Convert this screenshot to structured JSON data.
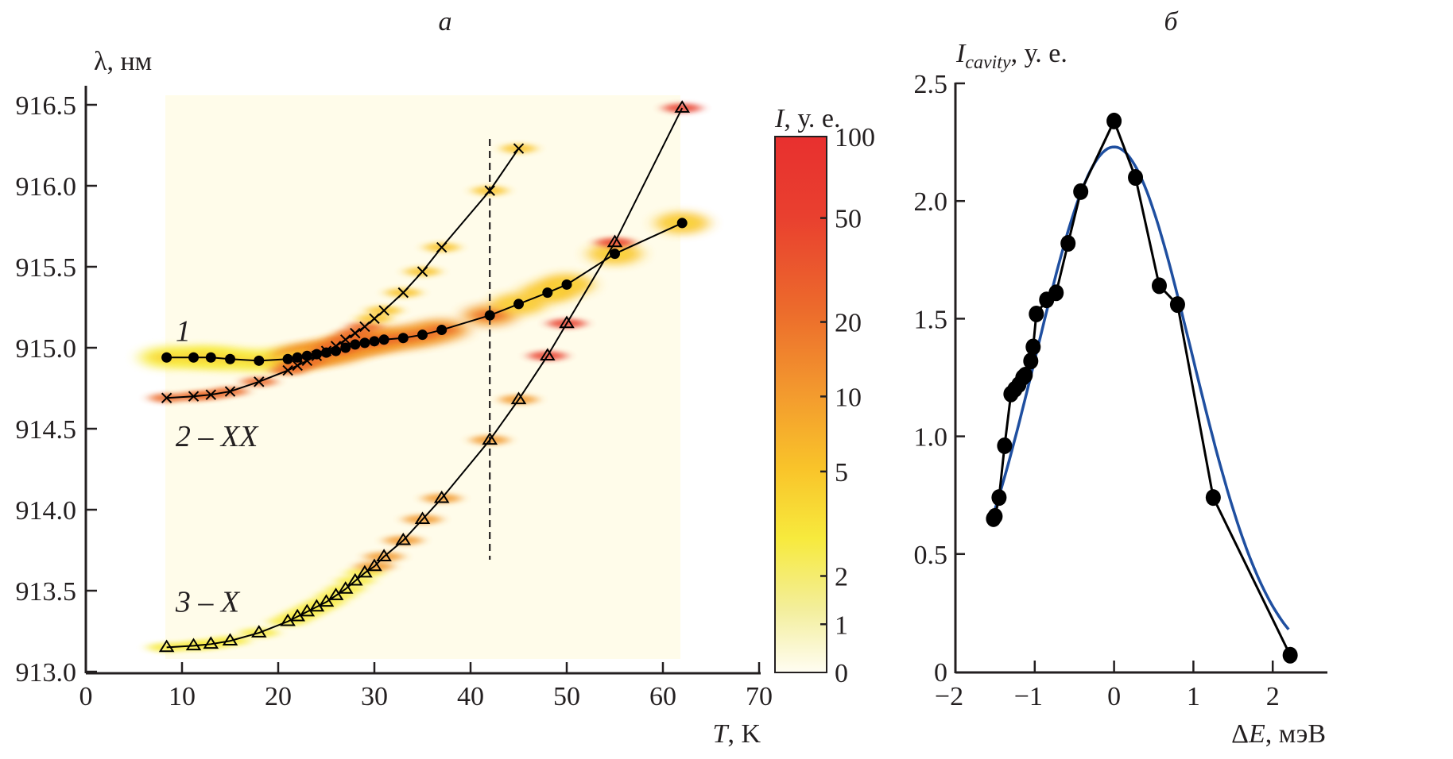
{
  "chart_data": [
    {
      "panel": "а",
      "type": "heatmap",
      "title": "а",
      "xlabel": "T, K",
      "xlabel_main": "T",
      "xlabel_unit": ", K",
      "ylabel": "λ, нм",
      "xlim": [
        0,
        70
      ],
      "ylim": [
        913.0,
        916.5
      ],
      "xticks": [
        0,
        10,
        20,
        30,
        40,
        50,
        60,
        70
      ],
      "yticks": [
        "913.0",
        "913.5",
        "914.0",
        "914.5",
        "915.0",
        "915.5",
        "916.0",
        "916.5"
      ],
      "grid": false,
      "colorbar": {
        "label": "I, у. е.",
        "label_main": "I",
        "label_unit": ", у. е.",
        "ticks": [
          "100",
          "50",
          "20",
          "10",
          "5",
          "2",
          "1",
          "0"
        ],
        "scale": "log",
        "colors": [
          "#fffdf2",
          "#f3ee9a",
          "#f7ea3d",
          "#f9c42a",
          "#f39a2e",
          "#ec6a2c",
          "#e9402f",
          "#e8302f"
        ]
      },
      "vertical_marker": {
        "x": 42,
        "style": "dashed"
      },
      "series": [
        {
          "name": "1",
          "marker": "filled-circle",
          "x": [
            8.4,
            11.2,
            13,
            15,
            18,
            21,
            22,
            23,
            24,
            25,
            26,
            27,
            28,
            29,
            30,
            31,
            33,
            35,
            37,
            42,
            45,
            48,
            50,
            55,
            62
          ],
          "y": [
            914.94,
            914.94,
            914.94,
            914.93,
            914.92,
            914.93,
            914.94,
            914.95,
            914.96,
            914.97,
            914.98,
            915.0,
            915.02,
            915.03,
            915.04,
            915.05,
            915.06,
            915.08,
            915.11,
            915.2,
            915.27,
            915.34,
            915.39,
            915.58,
            915.77
          ]
        },
        {
          "name": "2 – XX",
          "marker": "cross",
          "x": [
            8.4,
            11.2,
            13,
            15,
            18,
            21,
            22,
            23,
            24,
            25,
            26,
            27,
            28,
            29,
            30,
            31,
            33,
            35,
            37,
            42,
            45
          ],
          "y": [
            914.69,
            914.7,
            914.71,
            914.73,
            914.79,
            914.86,
            914.89,
            914.92,
            914.95,
            914.98,
            915.01,
            915.05,
            915.09,
            915.13,
            915.18,
            915.23,
            915.34,
            915.47,
            915.62,
            915.97,
            916.23
          ]
        },
        {
          "name": "3 – X",
          "marker": "open-triangle",
          "x": [
            8.4,
            11.2,
            13,
            15,
            18,
            21,
            22,
            23,
            24,
            25,
            26,
            27,
            28,
            29,
            30,
            31,
            33,
            35,
            37,
            42,
            45,
            48,
            50,
            55,
            62
          ],
          "y": [
            913.15,
            913.16,
            913.17,
            913.19,
            913.24,
            913.31,
            913.34,
            913.37,
            913.4,
            913.43,
            913.47,
            913.51,
            913.56,
            913.61,
            913.65,
            913.71,
            913.81,
            913.94,
            914.07,
            914.43,
            914.68,
            914.95,
            915.15,
            915.65,
            916.48
          ]
        }
      ],
      "series_labels": [
        {
          "text": "1",
          "x": 9,
          "y": 915.1
        },
        {
          "text": "2 – XX",
          "x": 9,
          "y": 914.45
        },
        {
          "text": "3 – X",
          "x": 9,
          "y": 913.43
        }
      ]
    },
    {
      "panel": "б",
      "type": "line",
      "title": "б",
      "xlabel": "ΔE, мэВ",
      "xlabel_main": "ΔE",
      "xlabel_unit": ", мэВ",
      "ylabel": "Icavity, у. е.",
      "ylabel_main": "I",
      "ylabel_sub": "cavity",
      "ylabel_unit": ", у. е.",
      "xlim": [
        -2,
        2.7
      ],
      "ylim": [
        0,
        2.5
      ],
      "xticks": [
        "−2",
        "−1",
        "0",
        "1",
        "2"
      ],
      "xtick_values": [
        -2,
        -1,
        0,
        1,
        2
      ],
      "yticks": [
        "0",
        "0.5",
        "1.0",
        "1.5",
        "2.0",
        "2.5"
      ],
      "ytick_values": [
        0,
        0.5,
        1.0,
        1.5,
        2.0,
        2.5
      ],
      "grid": false,
      "series": [
        {
          "name": "data",
          "color": "#000000",
          "marker": "filled-circle",
          "x": [
            -1.52,
            -1.5,
            -1.45,
            -1.38,
            -1.3,
            -1.25,
            -1.2,
            -1.15,
            -1.12,
            -1.05,
            -1.02,
            -0.98,
            -0.85,
            -0.73,
            -0.58,
            -0.42,
            0.0,
            0.27,
            0.57,
            0.8,
            1.25,
            2.22
          ],
          "y": [
            0.65,
            0.66,
            0.74,
            0.96,
            1.18,
            1.2,
            1.22,
            1.25,
            1.26,
            1.32,
            1.38,
            1.52,
            1.58,
            1.61,
            1.82,
            2.04,
            2.34,
            2.1,
            1.64,
            1.56,
            0.74,
            0.07
          ]
        },
        {
          "name": "gaussian-fit",
          "color": "#1f4fa0",
          "marker": "none",
          "fit": {
            "amplitude": 2.23,
            "center": 0.0,
            "sigma": 0.98,
            "x_from": -1.5,
            "x_to": 2.2
          }
        }
      ]
    }
  ]
}
